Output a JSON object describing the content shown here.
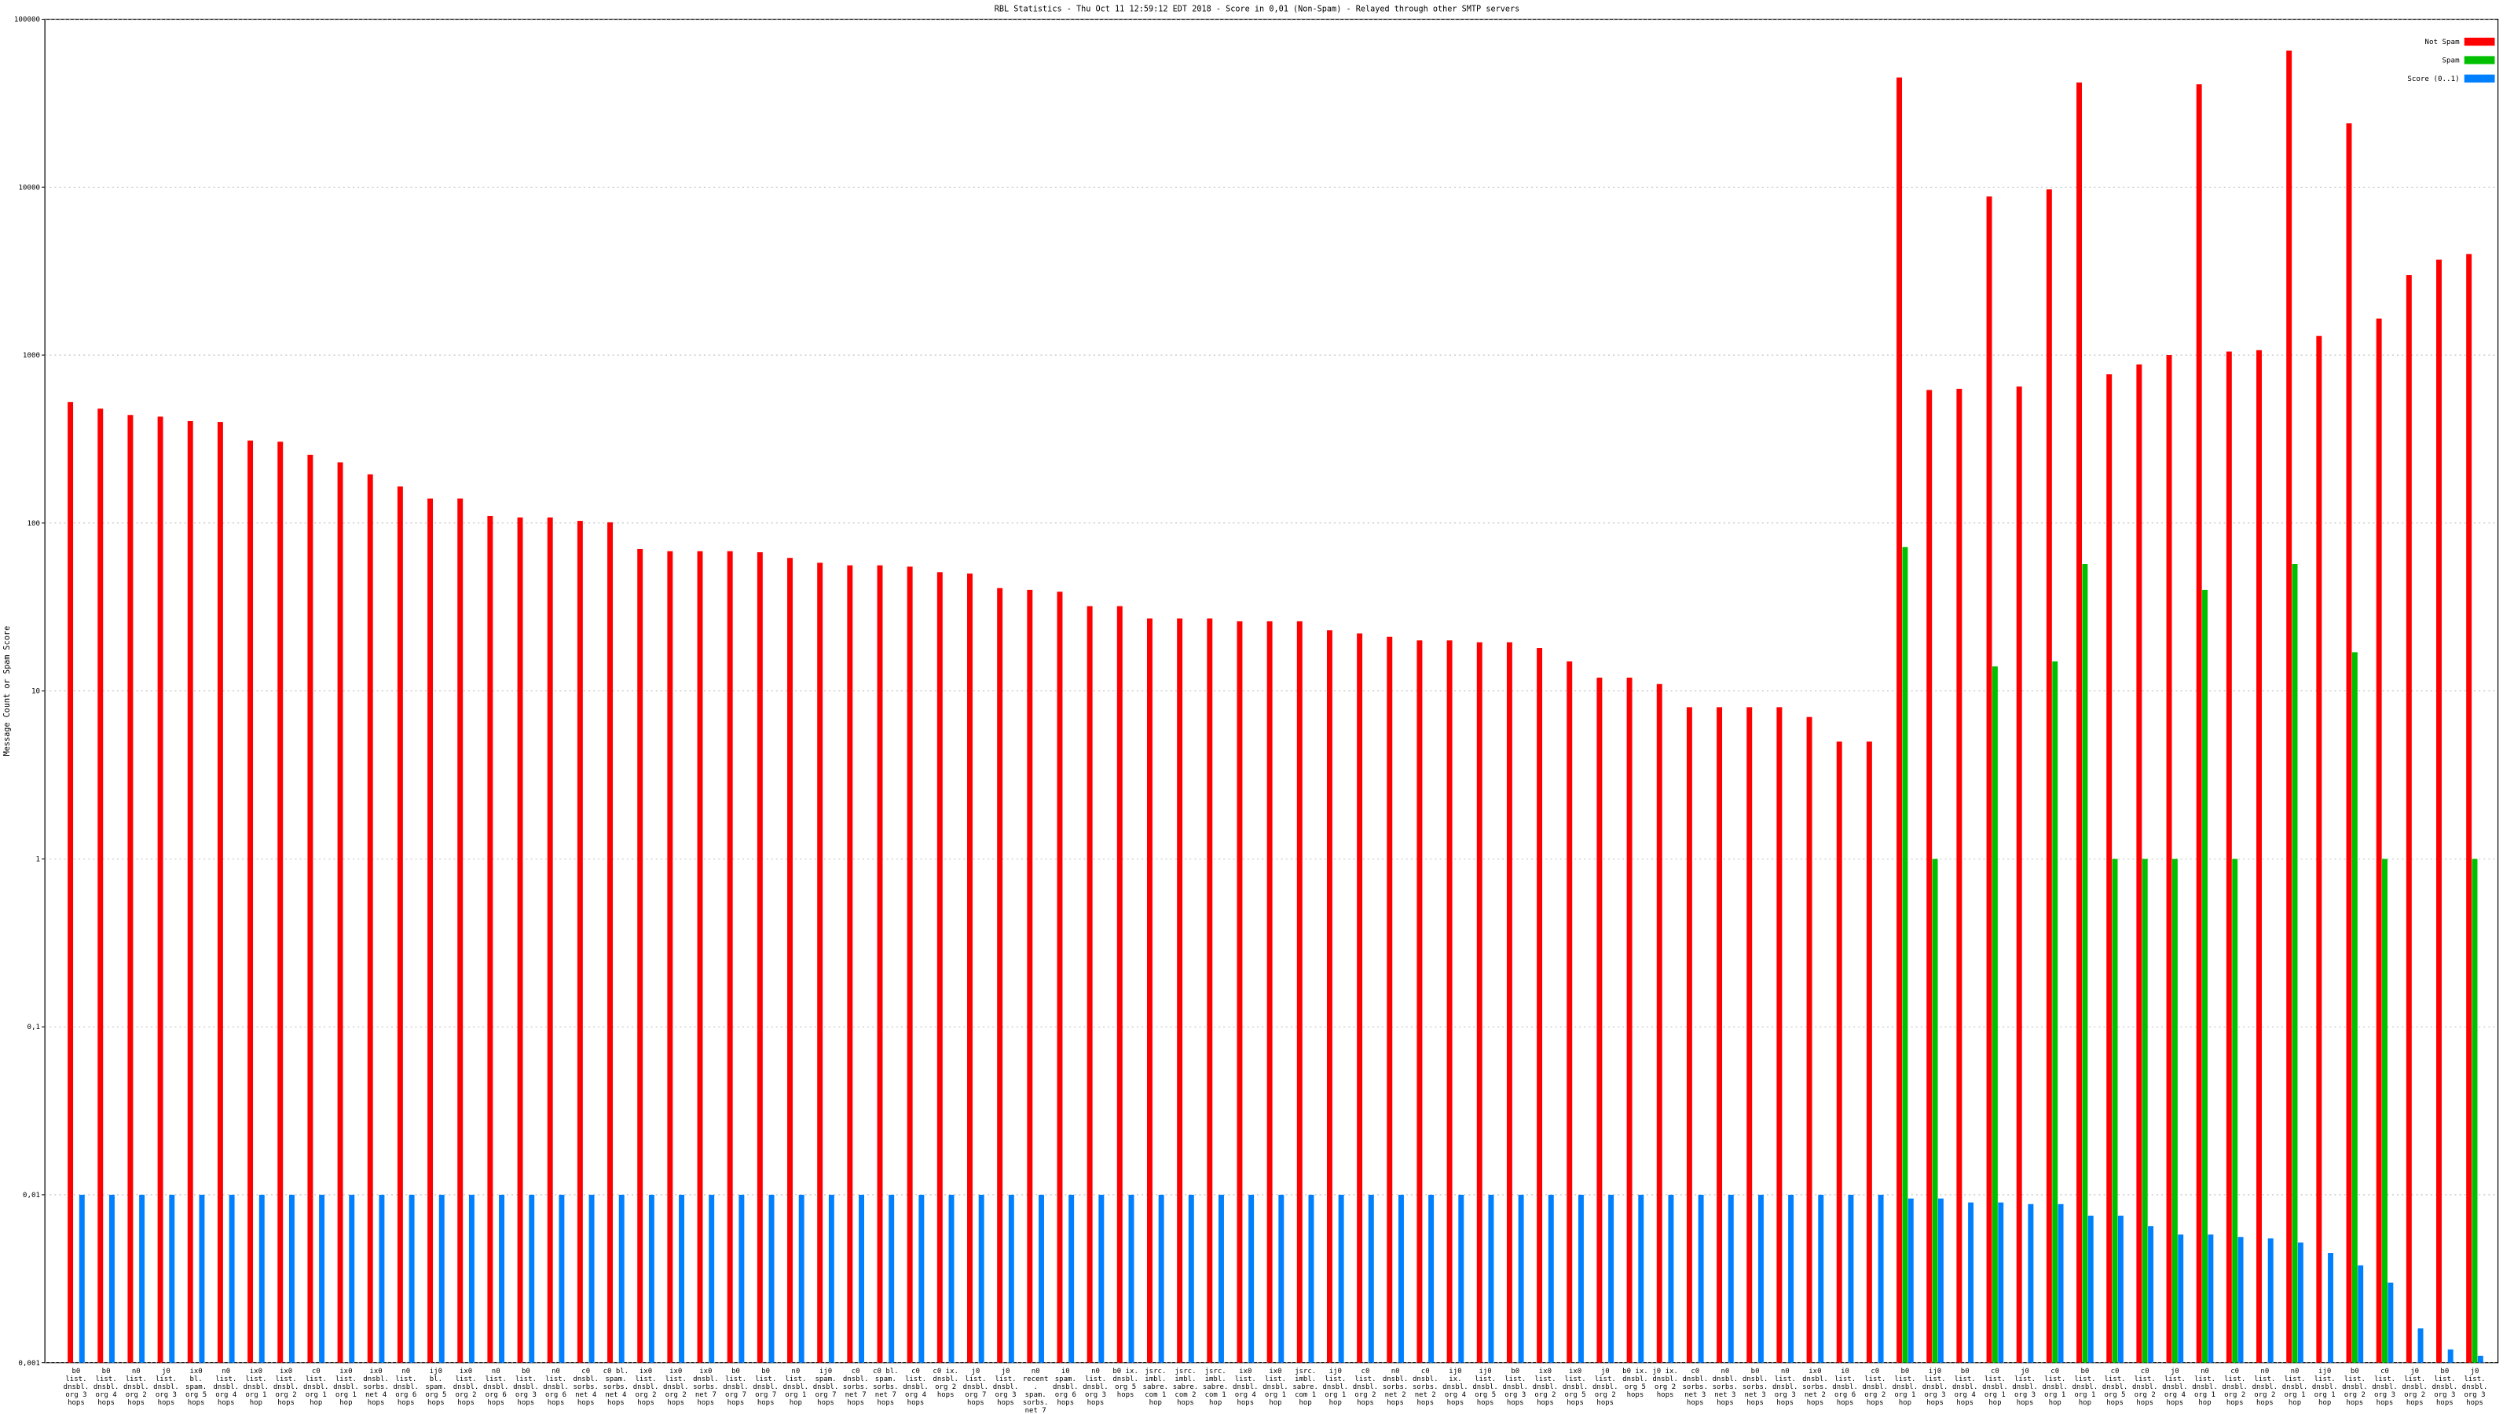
{
  "chart_data": {
    "type": "bar",
    "log_scale": true,
    "grid": true,
    "legend": "top-right",
    "title": "RBL Statistics - Thu Oct 11 12:59:12 EDT 2018 - Score in 0,01 (Non-Spam) - Relayed through other SMTP servers",
    "ylabel": "Message Count or Spam Score",
    "ylim": [
      0.001,
      100000
    ],
    "yticks": [
      {
        "value": 0.001,
        "label": "0,001"
      },
      {
        "value": 0.01,
        "label": "0,01"
      },
      {
        "value": 0.1,
        "label": "0,1"
      },
      1,
      10,
      100,
      1000,
      10000,
      100000
    ],
    "categories": [
      "b0 list. dnsbl. org 3 hops",
      "b0 list. dnsbl. org 4 hops",
      "n0 list. dnsbl. org 2 hops",
      "j0 list. dnsbl. org 3 hops",
      "ix0 bl. spam. org 5 hops",
      "n0 list. dnsbl. org 4 hops",
      "ix0 list. dnsbl. org 1 hop",
      "ix0 list. dnsbl. org 2 hops",
      "c0 list. dnsbl. org 1 hop",
      "ix0 list. dnsbl. org 1 hop",
      "ix0 dnsbl. sorbs. net 4 hops",
      "n0 list. dnsbl. org 6 hops",
      "ij0 bl. spam. org 5 hops",
      "ix0 list. dnsbl. org 2 hops",
      "n0 list. dnsbl. org 6 hops",
      "b0 list. dnsbl. org 3 hops",
      "n0 list. dnsbl. org 6 hops",
      "c0 dnsbl. sorbs. net 4 hops",
      "c0 bl. spam. sorbs. net 4 hops",
      "ix0 list. dnsbl. org 2 hops",
      "ix0 list. dnsbl. org 2 hops",
      "ix0 dnsbl. sorbs. net 7 hops",
      "b0 list. dnsbl. org 7 hops",
      "b0 list. dnsbl. org 7 hops",
      "n0 list. dnsbl. org 1 hop",
      "ij0 spam. dnsbl. org 7 hops",
      "c0 dnsbl. sorbs. net 7 hops",
      "c0 bl. spam. sorbs. net 7 hops",
      "c0 list. dnsbl. org 4 hops",
      "c0 ix. dnsbl. org 2 hops",
      "j0 list. dnsbl. org 7 hops",
      "j0 list. dnsbl. org 3 hops",
      "n0 recent. spam. sorbs. net 7 hops",
      "i0 spam. dnsbl. org 6 hops",
      "n0 list. dnsbl. org 3 hops",
      "b0 ix. dnsbl. org 5 hops",
      "jsrc. imbl. sabre. com 1 hop",
      "jsrc. imbl. sabre. com 2 hops",
      "jsrc. imbl. sabre. com 1 hop",
      "ix0 list. dnsbl. org 4 hops",
      "ix0 list. dnsbl. org 1 hop",
      "jsrc. imbl. sabre. com 1 hop",
      "ij0 list. dnsbl. org 1 hop",
      "c0 list. dnsbl. org 2 hops",
      "n0 dnsbl. sorbs. net 2 hops",
      "c0 dnsbl. sorbs. net 2 hops",
      "ij0 ix. dnsbl. org 4 hops",
      "ij0 list. dnsbl. org 5 hops",
      "b0 list. dnsbl. org 3 hops",
      "ix0 list. dnsbl. org 2 hops",
      "ix0 list. dnsbl. org 5 hops",
      "j0 list. dnsbl. org 2 hops",
      "b0 ix. dnsbl. org 5 hops",
      "j0 ix. dnsbl. org 2 hops",
      "c0 dnsbl. sorbs. net 3 hops",
      "n0 dnsbl. sorbs. net 3 hops",
      "b0 dnsbl. sorbs. net 3 hops",
      "n0 list. dnsbl. org 3 hops",
      "ix0 dnsbl. sorbs. net 2 hops",
      "i0 list. dnsbl. org 6 hops",
      "c0 list. dnsbl. org 2 hops",
      "b0 list. dnsbl. org 1 hop",
      "ij0 list. dnsbl. org 3 hops",
      "b0 list. dnsbl. org 4 hops",
      "c0 list. dnsbl. org 1 hop",
      "j0 list. dnsbl. org 3 hops",
      "c0 list. dnsbl. org 1 hop",
      "b0 list. dnsbl. org 1 hop",
      "c0 list. dnsbl. org 5 hops",
      "c0 list. dnsbl. org 2 hops",
      "j0 list. dnsbl. org 4 hops",
      "n0 list. dnsbl. org 1 hop",
      "c0 list. dnsbl. org 2 hops",
      "n0 list. dnsbl. org 2 hops",
      "n0 list. dnsbl. org 1 hop",
      "ij0 list. dnsbl. org 1 hop",
      "b0 list. dnsbl. org 2 hops",
      "c0 list. dnsbl. org 3 hops",
      "j0 list. dnsbl. org 2 hops",
      "b0 list. dnsbl. org 3 hops",
      "j0 list. dnsbl. org 3 hops"
    ],
    "series": [
      {
        "name": "Not Spam",
        "color": "#ff0000",
        "values": [
          525,
          480,
          440,
          430,
          405,
          400,
          310,
          305,
          255,
          230,
          195,
          165,
          140,
          140,
          110,
          108,
          108,
          103,
          101,
          70,
          68,
          68,
          68,
          67,
          62,
          58,
          56,
          56,
          55,
          51,
          50,
          41,
          40,
          39,
          32,
          32,
          27,
          27,
          27,
          26,
          26,
          26,
          23,
          22,
          21,
          20,
          20,
          19.5,
          19.5,
          18,
          15,
          12,
          12,
          11,
          8,
          8,
          8,
          8,
          7,
          5,
          5,
          45000,
          620,
          630,
          8800,
          650,
          9700,
          42000,
          770,
          880,
          1000,
          41000,
          1050,
          1070,
          65000,
          1300,
          24000,
          1650,
          3000,
          3700,
          4000
        ]
      },
      {
        "name": "Spam",
        "color": "#00c000",
        "values": [
          null,
          null,
          null,
          null,
          null,
          null,
          null,
          null,
          null,
          null,
          null,
          null,
          null,
          null,
          null,
          null,
          null,
          null,
          null,
          null,
          null,
          null,
          null,
          null,
          null,
          null,
          null,
          null,
          null,
          null,
          null,
          null,
          null,
          null,
          null,
          null,
          null,
          null,
          null,
          null,
          null,
          null,
          null,
          null,
          null,
          null,
          null,
          null,
          null,
          null,
          null,
          null,
          null,
          null,
          null,
          null,
          null,
          null,
          null,
          null,
          null,
          72,
          1,
          null,
          14,
          null,
          15,
          57,
          1,
          1,
          1,
          40,
          1,
          null,
          57,
          null,
          17,
          1,
          null,
          null,
          1
        ]
      },
      {
        "name": "Score (0..1)",
        "color": "#0080ff",
        "values": [
          0.01,
          0.01,
          0.01,
          0.01,
          0.01,
          0.01,
          0.01,
          0.01,
          0.01,
          0.01,
          0.01,
          0.01,
          0.01,
          0.01,
          0.01,
          0.01,
          0.01,
          0.01,
          0.01,
          0.01,
          0.01,
          0.01,
          0.01,
          0.01,
          0.01,
          0.01,
          0.01,
          0.01,
          0.01,
          0.01,
          0.01,
          0.01,
          0.01,
          0.01,
          0.01,
          0.01,
          0.01,
          0.01,
          0.01,
          0.01,
          0.01,
          0.01,
          0.01,
          0.01,
          0.01,
          0.01,
          0.01,
          0.01,
          0.01,
          0.01,
          0.01,
          0.01,
          0.01,
          0.01,
          0.01,
          0.01,
          0.01,
          0.01,
          0.01,
          0.01,
          0.01,
          0.0095,
          0.0095,
          0.009,
          0.009,
          0.0088,
          0.0088,
          0.0075,
          0.0075,
          0.0065,
          0.0058,
          0.0058,
          0.0056,
          0.0055,
          0.0052,
          0.0045,
          0.0038,
          0.003,
          0.0016,
          0.0012,
          0.0011
        ]
      }
    ]
  }
}
